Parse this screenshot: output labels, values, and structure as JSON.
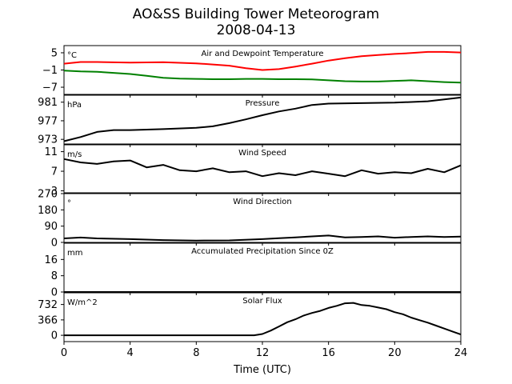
{
  "figure": {
    "title": "AO&SS Building Tower Meteorogram",
    "subtitle": "2008-04-13",
    "xlabel": "Time (UTC)"
  },
  "chart_data": [
    {
      "type": "line",
      "title": "Air and Dewpoint Temperature",
      "unit": "°C",
      "xlim": [
        0,
        24
      ],
      "xticks": [
        "0",
        "4",
        "8",
        "12",
        "16",
        "20",
        "24"
      ],
      "ylim": [
        -9.5,
        7.5
      ],
      "yticks": [
        "5",
        "−1",
        "−7"
      ],
      "ytick_values": [
        5,
        -1,
        -7
      ],
      "series": [
        {
          "color": "#ff0000",
          "x": [
            0,
            1,
            2,
            4,
            6,
            8,
            10,
            11,
            12,
            13,
            14,
            15,
            16,
            17,
            18,
            19,
            20,
            21,
            22,
            23,
            24
          ],
          "y": [
            1.2,
            1.8,
            1.8,
            1.6,
            1.7,
            1.3,
            0.5,
            -0.4,
            -1.0,
            -0.7,
            0.2,
            1.2,
            2.3,
            3.1,
            3.8,
            4.2,
            4.6,
            4.9,
            5.3,
            5.3,
            5.1
          ]
        },
        {
          "color": "#008000",
          "x": [
            0,
            1,
            2,
            3,
            4,
            5,
            6,
            7,
            8,
            9,
            10,
            11,
            12,
            13,
            14,
            15,
            16,
            17,
            18,
            19,
            20,
            21,
            22,
            23,
            24
          ],
          "y": [
            -1.2,
            -1.5,
            -1.6,
            -2.0,
            -2.4,
            -3.0,
            -3.7,
            -4.0,
            -4.1,
            -4.2,
            -4.2,
            -4.1,
            -4.1,
            -4.2,
            -4.2,
            -4.3,
            -4.6,
            -4.9,
            -5.0,
            -5.0,
            -4.8,
            -4.6,
            -4.9,
            -5.2,
            -5.4
          ]
        }
      ]
    },
    {
      "type": "line",
      "title": "Pressure",
      "unit": "hPa",
      "xlim": [
        0,
        24
      ],
      "ylim": [
        972,
        982.5
      ],
      "yticks": [
        "981",
        "977",
        "973"
      ],
      "ytick_values": [
        981,
        977,
        973
      ],
      "series": [
        {
          "color": "#000000",
          "x": [
            0,
            1,
            2,
            3,
            4,
            6,
            8,
            9,
            10,
            11,
            12,
            13,
            14,
            15,
            16,
            18,
            20,
            22,
            23,
            24
          ],
          "y": [
            972.6,
            973.5,
            974.6,
            975.0,
            975.0,
            975.2,
            975.5,
            975.8,
            976.5,
            977.3,
            978.2,
            979.0,
            979.6,
            980.4,
            980.7,
            980.8,
            980.9,
            981.2,
            981.6,
            982.0
          ]
        }
      ]
    },
    {
      "type": "line",
      "title": "Wind Speed",
      "unit": "m/s",
      "xlim": [
        0,
        24
      ],
      "ylim": [
        2.6,
        12.4
      ],
      "yticks": [
        "11",
        "7",
        "3"
      ],
      "ytick_values": [
        11,
        7,
        3
      ],
      "series": [
        {
          "color": "#000000",
          "x": [
            0,
            1,
            2,
            3,
            4,
            5,
            6,
            7,
            8,
            9,
            10,
            11,
            12,
            13,
            14,
            15,
            16,
            17,
            18,
            19,
            20,
            21,
            22,
            23,
            24
          ],
          "y": [
            9.5,
            8.8,
            8.5,
            9.0,
            9.2,
            7.8,
            8.3,
            7.2,
            7.0,
            7.6,
            6.8,
            7.0,
            6.0,
            6.6,
            6.2,
            7.0,
            6.5,
            6.0,
            7.2,
            6.5,
            6.8,
            6.6,
            7.5,
            6.8,
            8.2
          ]
        }
      ]
    },
    {
      "type": "line",
      "title": "Wind Direction",
      "unit": "°",
      "xlim": [
        0,
        24
      ],
      "ylim": [
        0,
        270
      ],
      "yticks": [
        "270",
        "180",
        "90",
        "0"
      ],
      "ytick_values": [
        270,
        180,
        90,
        0
      ],
      "series": [
        {
          "color": "#000000",
          "x": [
            0,
            1,
            2,
            4,
            6,
            8,
            10,
            12,
            13,
            14,
            15,
            16,
            17,
            18,
            19,
            20,
            21,
            22,
            23,
            24
          ],
          "y": [
            22,
            27,
            22,
            18,
            13,
            10,
            11,
            18,
            23,
            28,
            33,
            38,
            28,
            30,
            33,
            26,
            30,
            33,
            30,
            32
          ]
        }
      ]
    },
    {
      "type": "line",
      "title": "Accumulated Precipitation Since 0Z",
      "unit": "mm",
      "xlim": [
        0,
        24
      ],
      "ylim": [
        0,
        24
      ],
      "yticks": [
        "16",
        "8",
        "0"
      ],
      "ytick_values": [
        16,
        8,
        0
      ],
      "series": [
        {
          "color": "#000000",
          "x": [
            0,
            24
          ],
          "y": [
            0,
            0
          ]
        }
      ]
    },
    {
      "type": "line",
      "title": "Solar Flux",
      "unit": "W/m^2",
      "xlim": [
        0,
        24
      ],
      "ylim": [
        -150,
        1010
      ],
      "yticks": [
        "732",
        "366",
        "0"
      ],
      "ytick_values": [
        732,
        366,
        0
      ],
      "series": [
        {
          "color": "#000000",
          "x": [
            0,
            11.5,
            12,
            12.5,
            13,
            13.5,
            14,
            14.5,
            15,
            15.5,
            16,
            16.5,
            17,
            17.5,
            18,
            18.5,
            19,
            19.5,
            20,
            20.5,
            21,
            21.5,
            22,
            22.5,
            23,
            23.5,
            24
          ],
          "y": [
            0,
            0,
            30,
            110,
            210,
            310,
            380,
            470,
            530,
            580,
            650,
            700,
            760,
            770,
            720,
            700,
            660,
            620,
            550,
            500,
            420,
            360,
            300,
            230,
            160,
            90,
            20
          ]
        }
      ]
    }
  ]
}
